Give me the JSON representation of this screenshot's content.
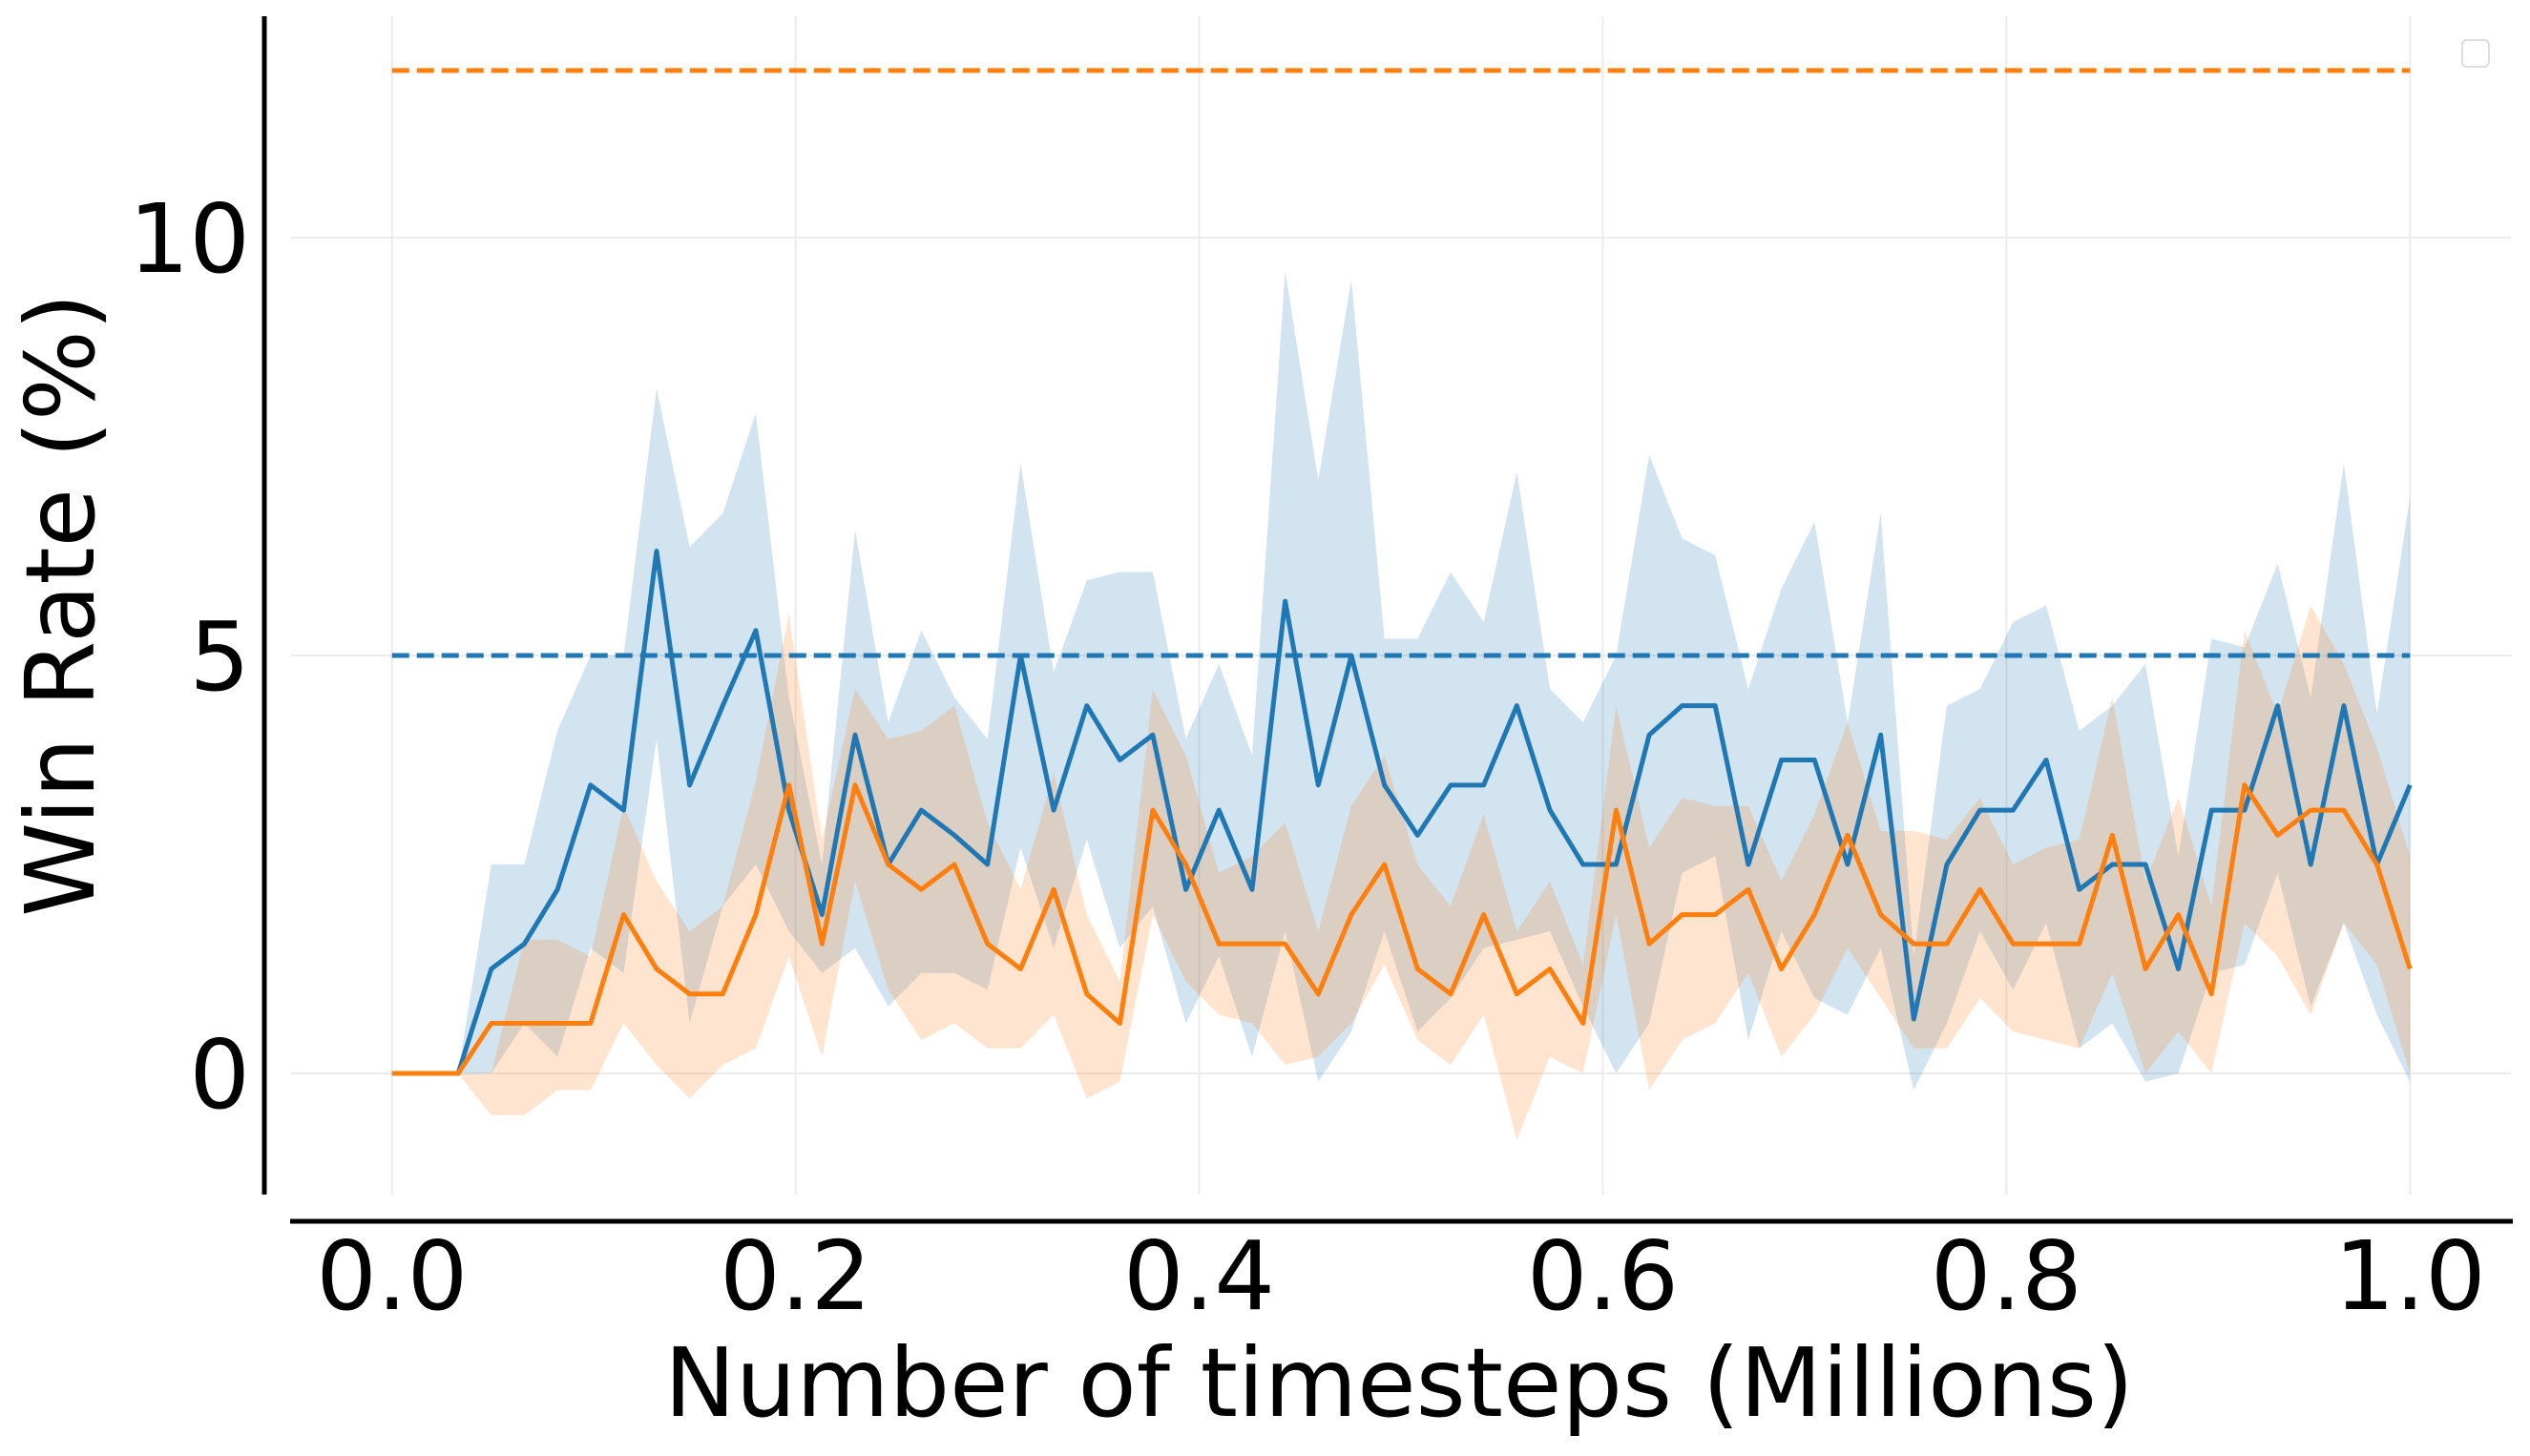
{
  "chart_data": {
    "type": "line",
    "x_label": "Number of timesteps (Millions)",
    "y_label": "Win Rate (%)",
    "x": [
      0,
      0.0164,
      0.0328,
      0.0492,
      0.0656,
      0.082,
      0.0984,
      0.1148,
      0.1311,
      0.1475,
      0.1639,
      0.1803,
      0.1967,
      0.2131,
      0.2295,
      0.2459,
      0.2623,
      0.2787,
      0.2951,
      0.3115,
      0.3279,
      0.3443,
      0.3607,
      0.377,
      0.3934,
      0.4098,
      0.4262,
      0.4426,
      0.459,
      0.4754,
      0.4918,
      0.5082,
      0.5246,
      0.541,
      0.5574,
      0.5738,
      0.5902,
      0.6066,
      0.623,
      0.6393,
      0.6557,
      0.6721,
      0.6885,
      0.7049,
      0.7213,
      0.7377,
      0.7541,
      0.7705,
      0.7869,
      0.8033,
      0.8197,
      0.8361,
      0.8525,
      0.8689,
      0.8852,
      0.9016,
      0.918,
      0.9344,
      0.9508,
      0.9672,
      0.9836,
      1
    ],
    "series": [
      {
        "color": "#1f77b4",
        "values": [
          0,
          0,
          0,
          1.25,
          1.55,
          2.2,
          3.45,
          3.15,
          6.25,
          3.45,
          4.4,
          5.3,
          3.15,
          1.9,
          4.05,
          2.5,
          3.15,
          2.85,
          2.5,
          5.0,
          3.15,
          4.4,
          3.75,
          4.05,
          2.2,
          3.15,
          2.2,
          5.65,
          3.45,
          5.0,
          3.45,
          2.85,
          3.45,
          3.45,
          4.4,
          3.15,
          2.5,
          2.5,
          4.05,
          4.4,
          4.4,
          2.5,
          3.75,
          3.75,
          2.5,
          4.05,
          0.65,
          2.5,
          3.15,
          3.15,
          3.75,
          2.2,
          2.5,
          2.5,
          1.25,
          3.15,
          3.15,
          4.4,
          2.5,
          4.4,
          2.5,
          3.45
        ],
        "upper": [
          0,
          0,
          0,
          2.5,
          2.5,
          4.1,
          5.0,
          5.0,
          8.2,
          6.3,
          6.7,
          7.9,
          4.5,
          2.5,
          6.5,
          4.2,
          5.3,
          4.5,
          4.0,
          7.3,
          4.8,
          5.9,
          6.0,
          6.0,
          4.0,
          4.9,
          3.8,
          9.6,
          7.1,
          9.5,
          5.2,
          5.2,
          6.0,
          5.4,
          7.2,
          4.6,
          4.2,
          5.0,
          7.4,
          6.4,
          6.2,
          4.6,
          5.8,
          6.6,
          4.2,
          6.7,
          1.4,
          4.4,
          4.6,
          5.4,
          5.6,
          4.1,
          4.4,
          4.9,
          2.6,
          5.2,
          5.1,
          6.1,
          4.5,
          7.3,
          4.3,
          6.9
        ],
        "lower": [
          0,
          0,
          0,
          0,
          0.6,
          0.2,
          1.5,
          1.2,
          4.0,
          0.6,
          2.0,
          2.5,
          1.7,
          1.2,
          1.5,
          0.8,
          1.2,
          1.2,
          1.0,
          2.7,
          1.5,
          2.8,
          1.5,
          2.0,
          0.6,
          1.4,
          0.2,
          1.7,
          -0.1,
          0.5,
          1.7,
          0.5,
          0.9,
          1.5,
          1.6,
          1.7,
          0.8,
          0.0,
          0.6,
          2.4,
          2.6,
          0.4,
          1.7,
          0.9,
          0.7,
          1.5,
          -0.2,
          0.6,
          1.7,
          1.0,
          1.8,
          0.3,
          0.6,
          -0.1,
          0.0,
          1.2,
          1.3,
          2.4,
          0.8,
          1.8,
          0.7,
          -0.1
        ]
      },
      {
        "color": "#ff7f0e",
        "values": [
          0,
          0,
          0,
          0.6,
          0.6,
          0.6,
          0.6,
          1.9,
          1.25,
          0.95,
          0.95,
          1.9,
          3.45,
          1.55,
          3.45,
          2.5,
          2.2,
          2.5,
          1.55,
          1.25,
          2.2,
          0.95,
          0.6,
          3.15,
          2.5,
          1.55,
          1.55,
          1.55,
          0.95,
          1.9,
          2.5,
          1.25,
          0.95,
          1.9,
          0.95,
          1.25,
          0.6,
          3.15,
          1.55,
          1.9,
          1.9,
          2.2,
          1.25,
          1.9,
          2.85,
          1.9,
          1.55,
          1.55,
          2.2,
          1.55,
          1.55,
          1.55,
          2.85,
          1.25,
          1.9,
          0.95,
          3.45,
          2.85,
          3.15,
          3.15,
          2.5,
          1.25
        ],
        "upper": [
          0,
          0,
          0,
          0,
          1.6,
          1.6,
          1.4,
          3.2,
          2.3,
          1.7,
          2.0,
          3.5,
          5.5,
          2.8,
          4.6,
          4.0,
          4.1,
          4.4,
          3.0,
          2.2,
          3.6,
          1.9,
          1.1,
          4.6,
          3.8,
          2.4,
          2.6,
          3.0,
          1.7,
          3.2,
          3.8,
          2.5,
          2.0,
          3.1,
          1.7,
          2.3,
          1.3,
          4.4,
          2.7,
          3.3,
          3.2,
          3.2,
          2.3,
          3.1,
          4.2,
          2.9,
          2.9,
          2.8,
          3.3,
          2.5,
          2.7,
          2.8,
          4.5,
          2.3,
          3.3,
          2.0,
          5.3,
          4.3,
          5.6,
          4.9,
          3.9,
          2.6
        ],
        "lower": [
          0,
          0,
          0,
          -0.5,
          -0.5,
          -0.2,
          -0.2,
          0.6,
          0.1,
          -0.3,
          0.1,
          0.3,
          1.4,
          0.2,
          2.3,
          1.0,
          0.4,
          0.6,
          0.3,
          0.3,
          0.7,
          -0.3,
          -0.1,
          1.9,
          1.1,
          0.7,
          0.6,
          0.1,
          0.2,
          0.6,
          1.3,
          0.4,
          0.1,
          0.7,
          -0.8,
          0.2,
          0.0,
          1.9,
          -0.2,
          0.4,
          0.6,
          1.2,
          0.2,
          0.7,
          1.5,
          0.9,
          0.3,
          0.3,
          0.9,
          0.5,
          0.4,
          0.3,
          1.2,
          0.0,
          0.5,
          0.0,
          1.8,
          1.4,
          0.7,
          1.8,
          1.3,
          0.0
        ]
      }
    ],
    "hlines": [
      {
        "value": 5,
        "color": "#1f77b4"
      },
      {
        "value": 12,
        "color": "#ff7f0e"
      }
    ],
    "xlim": [
      -0.05,
      1.05
    ],
    "ylim": [
      -1.45,
      12.65
    ],
    "xticks": [
      {
        "value": 0,
        "label": "0.0"
      },
      0.2,
      0.4,
      0.6,
      0.8,
      {
        "value": 1,
        "label": "1.0"
      }
    ],
    "yticks": [
      0,
      5,
      10
    ],
    "grid": true
  }
}
